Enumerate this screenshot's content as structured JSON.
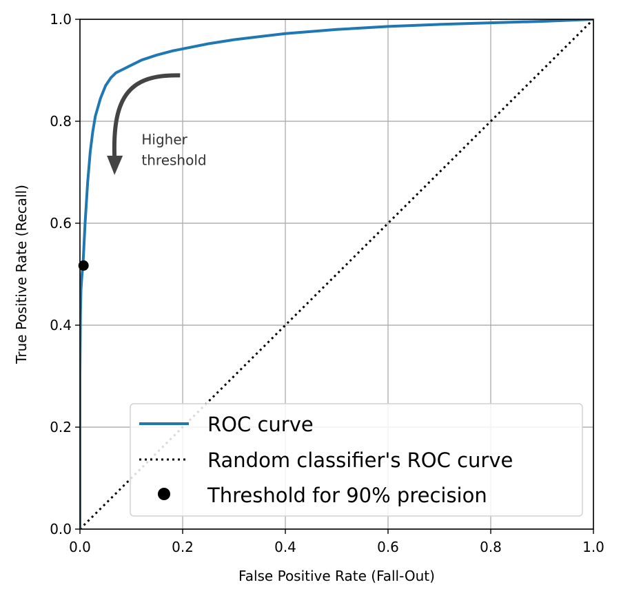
{
  "chart_data": {
    "type": "line",
    "title": "",
    "xlabel": "False Positive Rate (Fall-Out)",
    "ylabel": "True Positive Rate (Recall)",
    "xlim": [
      0,
      1
    ],
    "ylim": [
      0,
      1
    ],
    "grid": true,
    "x_ticks": [
      0.0,
      0.2,
      0.4,
      0.6,
      0.8,
      1.0
    ],
    "y_ticks": [
      0.0,
      0.2,
      0.4,
      0.6,
      0.8,
      1.0
    ],
    "x_tick_labels": [
      "0.0",
      "0.2",
      "0.4",
      "0.6",
      "0.8",
      "1.0"
    ],
    "y_tick_labels": [
      "0.0",
      "0.2",
      "0.4",
      "0.6",
      "0.8",
      "1.0"
    ],
    "series": [
      {
        "name": "ROC curve",
        "style": "solid",
        "color": "#1f77b4",
        "x": [
          0.0,
          0.0,
          0.001,
          0.002,
          0.004,
          0.006,
          0.008,
          0.01,
          0.015,
          0.02,
          0.025,
          0.03,
          0.04,
          0.05,
          0.06,
          0.07,
          0.08,
          0.1,
          0.12,
          0.15,
          0.18,
          0.2,
          0.25,
          0.3,
          0.35,
          0.4,
          0.5,
          0.6,
          0.7,
          0.8,
          0.9,
          0.95,
          1.0
        ],
        "y": [
          0.0,
          0.3,
          0.42,
          0.47,
          0.5,
          0.52,
          0.56,
          0.6,
          0.68,
          0.74,
          0.78,
          0.81,
          0.845,
          0.87,
          0.885,
          0.895,
          0.9,
          0.91,
          0.92,
          0.93,
          0.938,
          0.942,
          0.952,
          0.96,
          0.966,
          0.972,
          0.98,
          0.986,
          0.99,
          0.993,
          0.996,
          0.998,
          1.0
        ]
      },
      {
        "name": "Random classifier's ROC curve",
        "style": "dotted",
        "color": "#000000",
        "x": [
          0,
          1
        ],
        "y": [
          0,
          1
        ]
      }
    ],
    "points": [
      {
        "name": "Threshold for 90% precision",
        "x": 0.007,
        "y": 0.517,
        "color": "#000000"
      }
    ],
    "annotation": {
      "text_lines": [
        "Higher",
        "threshold"
      ],
      "text_x": 0.12,
      "text_y": 0.755,
      "arrow_from": [
        0.195,
        0.89
      ],
      "arrow_to": [
        0.07,
        0.7
      ]
    },
    "legend": {
      "position": "bottom-right",
      "entries": [
        "ROC curve",
        "Random classifier's ROC curve",
        "Threshold for 90% precision"
      ]
    }
  }
}
